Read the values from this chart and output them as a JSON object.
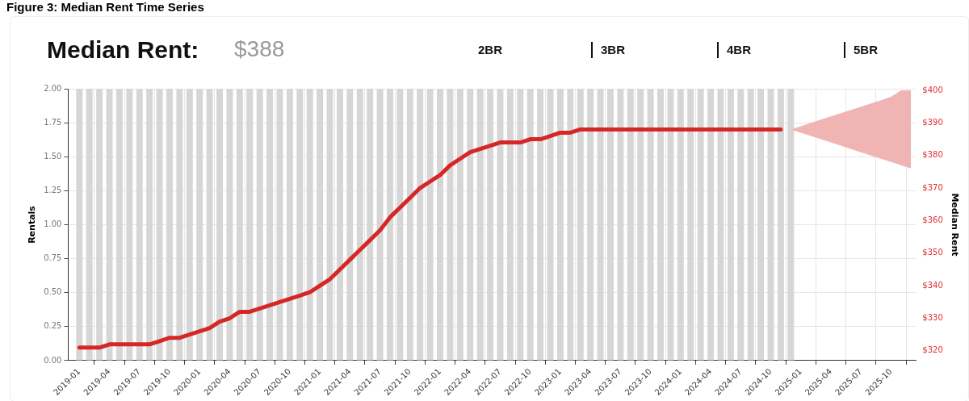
{
  "chart_data": {
    "type": "bar",
    "title": "Figure 3: Median Rent Time Series",
    "subtitle": "Median Rent:",
    "annotations": [
      "$388",
      "2BR",
      "3BR",
      "4BR",
      "5BR"
    ],
    "ylabel": "Rentals",
    "y2label": "Median Rent",
    "grid": true,
    "legend": false,
    "xlim": [
      "2018-11-28",
      "2025-12-16"
    ],
    "xticks": [
      "2019-01",
      "2019-04",
      "2019-07",
      "2019-10",
      "2020-01",
      "2020-04",
      "2020-07",
      "2020-10",
      "2021-01",
      "2021-04",
      "2021-07",
      "2021-10",
      "2022-01",
      "2022-04",
      "2022-07",
      "2022-10",
      "2023-01",
      "2023-04",
      "2023-07",
      "2023-10",
      "2024-01",
      "2024-04",
      "2024-07",
      "2024-10",
      "2025-01",
      "2025-04",
      "2025-07",
      "2025-10"
    ],
    "ylim": [
      0,
      2
    ],
    "yticks": [
      {
        "value": 0,
        "label": "0.00"
      },
      {
        "value": 0.25,
        "label": "0.25"
      },
      {
        "value": 0.5,
        "label": "0.50"
      },
      {
        "value": 0.75,
        "label": "0.75"
      },
      {
        "value": 1,
        "label": "1.00"
      },
      {
        "value": 1.25,
        "label": "1.25"
      },
      {
        "value": 1.5,
        "label": "1.50"
      },
      {
        "value": 1.75,
        "label": "1.75"
      },
      {
        "value": 2,
        "label": "2.00"
      }
    ],
    "y2lim": [
      317,
      400.5
    ],
    "y2ticks": [
      {
        "value": 320,
        "label": "$320"
      },
      {
        "value": 330,
        "label": "$330"
      },
      {
        "value": 340,
        "label": "$340"
      },
      {
        "value": 350,
        "label": "$350"
      },
      {
        "value": 360,
        "label": "$360"
      },
      {
        "value": 370,
        "label": "$370"
      },
      {
        "value": 380,
        "label": "$380"
      },
      {
        "value": 390,
        "label": "$390"
      },
      {
        "value": 400,
        "label": "$400"
      }
    ],
    "series": [
      {
        "color": "#d6d6d6",
        "x": [
          "2019-01",
          "2019-02",
          "2019-03",
          "2019-04",
          "2019-05",
          "2019-06",
          "2019-07",
          "2019-08",
          "2019-09",
          "2019-10",
          "2019-11",
          "2019-12",
          "2020-01",
          "2020-02",
          "2020-03",
          "2020-04",
          "2020-05",
          "2020-06",
          "2020-07",
          "2020-08",
          "2020-09",
          "2020-10",
          "2020-11",
          "2020-12",
          "2021-01",
          "2021-02",
          "2021-03",
          "2021-04",
          "2021-05",
          "2021-06",
          "2021-07",
          "2021-08",
          "2021-09",
          "2021-10",
          "2021-11",
          "2021-12",
          "2022-01",
          "2022-02",
          "2022-03",
          "2022-04",
          "2022-05",
          "2022-06",
          "2022-07",
          "2022-08",
          "2022-09",
          "2022-10",
          "2022-11",
          "2022-12",
          "2023-01",
          "2023-02",
          "2023-03",
          "2023-04",
          "2023-05",
          "2023-06",
          "2023-07",
          "2023-08",
          "2023-09",
          "2023-10",
          "2023-11",
          "2023-12",
          "2024-01",
          "2024-02",
          "2024-03",
          "2024-04",
          "2024-05",
          "2024-06",
          "2024-07",
          "2024-08",
          "2024-09",
          "2024-10",
          "2024-11",
          "2024-12"
        ],
        "values": [
          2,
          2,
          2,
          2,
          2,
          2,
          2,
          2,
          2,
          2,
          2,
          2,
          2,
          2,
          2,
          2,
          2,
          2,
          2,
          2,
          2,
          2,
          2,
          2,
          2,
          2,
          2,
          2,
          2,
          2,
          2,
          2,
          2,
          2,
          2,
          2,
          2,
          2,
          2,
          2,
          2,
          2,
          2,
          2,
          2,
          2,
          2,
          2,
          2,
          2,
          2,
          2,
          2,
          2,
          2,
          2,
          2,
          2,
          2,
          2,
          2,
          2,
          2,
          2,
          2,
          2,
          2,
          2,
          2,
          2,
          2,
          2
        ]
      },
      {
        "type": "line",
        "axis": "y2",
        "color": "#d62728",
        "x": [
          "2019-01",
          "2019-02",
          "2019-03",
          "2019-04",
          "2019-05",
          "2019-06",
          "2019-07",
          "2019-08",
          "2019-09",
          "2019-10",
          "2019-11",
          "2019-12",
          "2020-01",
          "2020-02",
          "2020-03",
          "2020-04",
          "2020-05",
          "2020-06",
          "2020-07",
          "2020-08",
          "2020-09",
          "2020-10",
          "2020-11",
          "2020-12",
          "2021-01",
          "2021-02",
          "2021-03",
          "2021-04",
          "2021-05",
          "2021-06",
          "2021-07",
          "2021-08",
          "2021-09",
          "2021-10",
          "2021-11",
          "2021-12",
          "2022-01",
          "2022-02",
          "2022-03",
          "2022-04",
          "2022-05",
          "2022-06",
          "2022-07",
          "2022-08",
          "2022-09",
          "2022-10",
          "2022-11",
          "2022-12",
          "2023-01",
          "2023-02",
          "2023-03",
          "2023-04",
          "2023-05",
          "2023-06",
          "2023-07",
          "2023-08",
          "2023-09",
          "2023-10",
          "2023-11",
          "2023-12",
          "2024-01",
          "2024-02",
          "2024-03",
          "2024-04",
          "2024-05",
          "2024-06",
          "2024-07",
          "2024-08",
          "2024-09",
          "2024-10",
          "2024-11"
        ],
        "values": [
          321,
          321,
          321,
          322,
          322,
          322,
          322,
          322,
          323,
          324,
          324,
          325,
          326,
          327,
          329,
          330,
          332,
          332,
          333,
          334,
          335,
          336,
          337,
          338,
          340,
          342,
          345,
          348,
          351,
          354,
          357,
          361,
          364,
          367,
          370,
          372,
          374,
          377,
          379,
          381,
          382,
          383,
          384,
          384,
          384,
          385,
          385,
          386,
          387,
          387,
          388,
          388,
          388,
          388,
          388,
          388,
          388,
          388,
          388,
          388,
          388,
          388,
          388,
          388,
          388,
          388,
          388,
          388,
          388,
          388,
          388
        ]
      },
      {
        "type": "line",
        "axis": "y2",
        "color": "#f0b4b4",
        "x": [
          "2024-12",
          "2025-01",
          "2025-02",
          "2025-03",
          "2025-04",
          "2025-05",
          "2025-06",
          "2025-07",
          "2025-08",
          "2025-09",
          "2025-10",
          "2025-11",
          "2025-12"
        ],
        "values": [
          null,
          null,
          null,
          null,
          null,
          null,
          null,
          null,
          null,
          null,
          null,
          null,
          null
        ],
        "lower": [
          388,
          387,
          386,
          385,
          384,
          383,
          382,
          381,
          380,
          379,
          378,
          377,
          376
        ],
        "upper": [
          388,
          389,
          390,
          391,
          392,
          393,
          394,
          395,
          396,
          397,
          398,
          400,
          400
        ]
      }
    ]
  }
}
